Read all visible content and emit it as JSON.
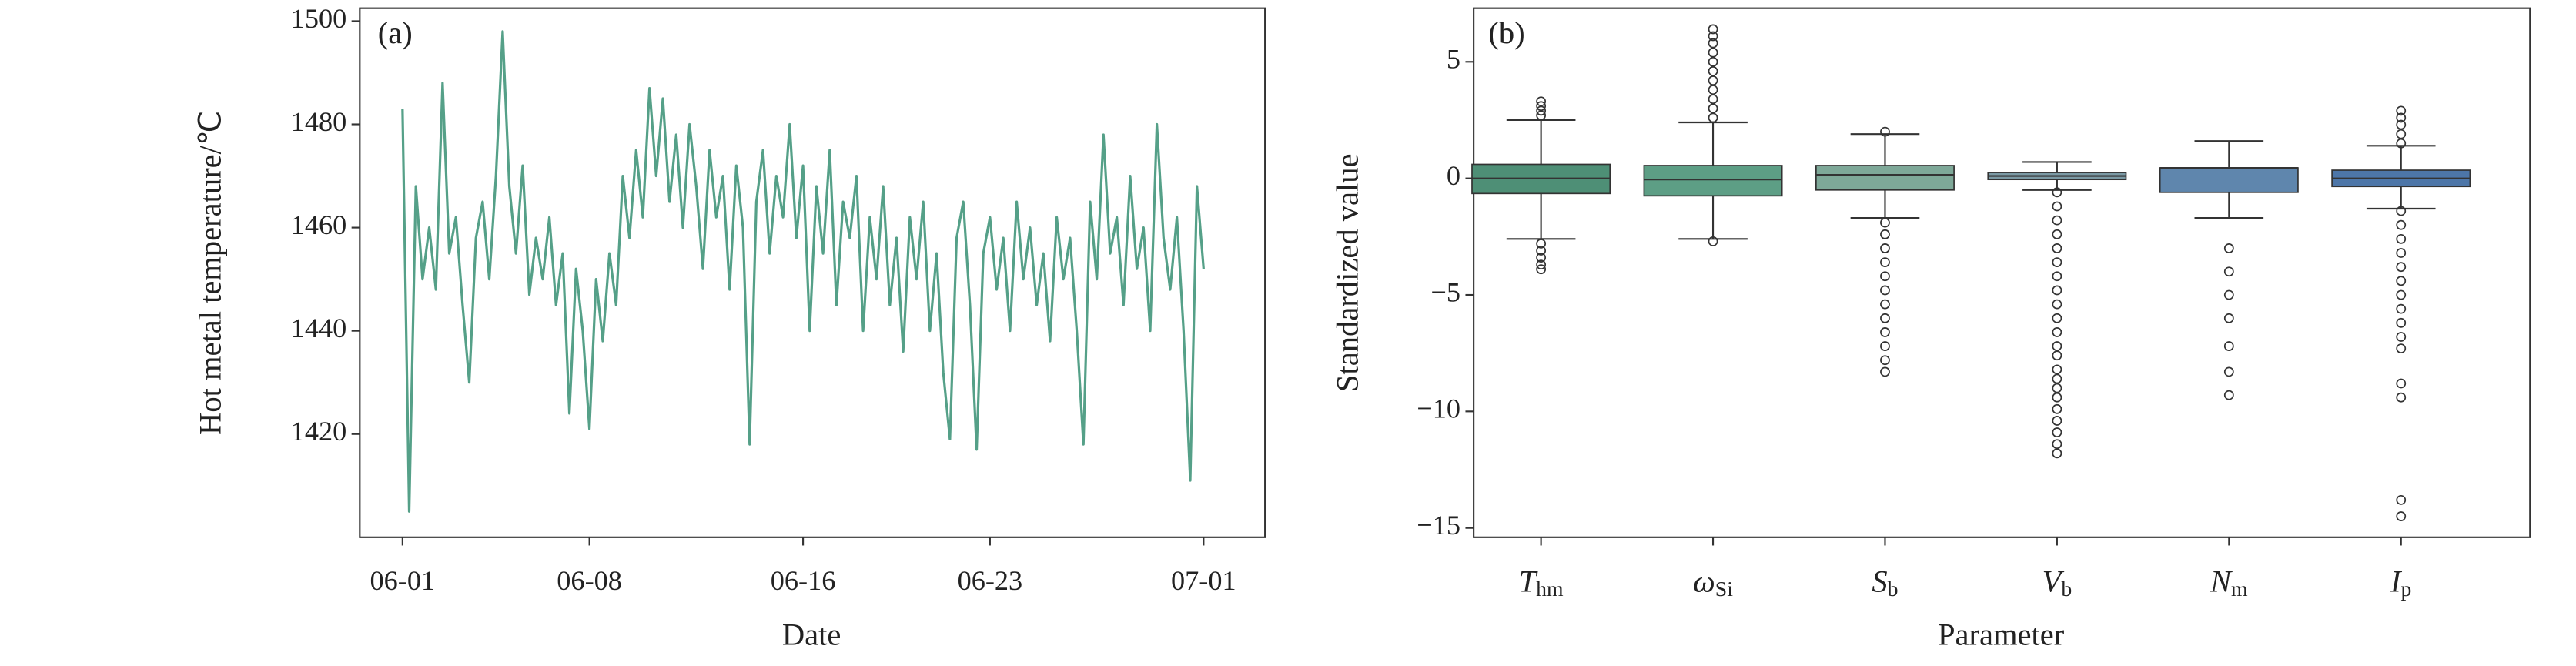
{
  "chart_data": [
    {
      "type": "line",
      "panel_label": "(a)",
      "ylabel": "Hot metal temperature/℃",
      "xlabel": "Date",
      "x": [
        0,
        0.25,
        0.5,
        0.75,
        1,
        1.25,
        1.5,
        1.75,
        2,
        2.25,
        2.5,
        2.75,
        3,
        3.25,
        3.5,
        3.75,
        4,
        4.25,
        4.5,
        4.75,
        5,
        5.25,
        5.5,
        5.75,
        6,
        6.25,
        6.5,
        6.75,
        7,
        7.25,
        7.5,
        7.75,
        8,
        8.25,
        8.5,
        8.75,
        9,
        9.25,
        9.5,
        9.75,
        10,
        10.25,
        10.5,
        10.75,
        11,
        11.25,
        11.5,
        11.75,
        12,
        12.25,
        12.5,
        12.75,
        13,
        13.25,
        13.5,
        13.75,
        14,
        14.25,
        14.5,
        14.75,
        15,
        15.25,
        15.5,
        15.75,
        16,
        16.25,
        16.5,
        16.75,
        17,
        17.25,
        17.5,
        17.75,
        18,
        18.25,
        18.5,
        18.75,
        19,
        19.25,
        19.5,
        19.75,
        20,
        20.25,
        20.5,
        20.75,
        21,
        21.25,
        21.5,
        21.75,
        22,
        22.25,
        22.5,
        22.75,
        23,
        23.25,
        23.5,
        23.75,
        24,
        24.25,
        24.5,
        24.75,
        25,
        25.25,
        25.5,
        25.75,
        26,
        26.25,
        26.5,
        26.75,
        27,
        27.25,
        27.5,
        27.75,
        28,
        28.25,
        28.5,
        28.75,
        29,
        29.25,
        29.5,
        29.75,
        30
      ],
      "values": [
        1483,
        1405,
        1468,
        1450,
        1460,
        1448,
        1488,
        1455,
        1462,
        1445,
        1430,
        1458,
        1465,
        1450,
        1470,
        1498,
        1468,
        1455,
        1472,
        1447,
        1458,
        1450,
        1462,
        1445,
        1455,
        1424,
        1452,
        1440,
        1421,
        1450,
        1438,
        1455,
        1445,
        1470,
        1458,
        1475,
        1462,
        1487,
        1470,
        1485,
        1465,
        1478,
        1460,
        1480,
        1468,
        1452,
        1475,
        1462,
        1470,
        1448,
        1472,
        1460,
        1418,
        1465,
        1475,
        1455,
        1470,
        1462,
        1480,
        1458,
        1472,
        1440,
        1468,
        1455,
        1475,
        1445,
        1465,
        1458,
        1470,
        1440,
        1462,
        1450,
        1468,
        1445,
        1458,
        1436,
        1462,
        1450,
        1465,
        1440,
        1455,
        1432,
        1419,
        1458,
        1465,
        1445,
        1417,
        1455,
        1462,
        1448,
        1458,
        1440,
        1465,
        1450,
        1460,
        1445,
        1455,
        1438,
        1462,
        1450,
        1458,
        1440,
        1418,
        1465,
        1450,
        1478,
        1455,
        1462,
        1445,
        1470,
        1452,
        1460,
        1440,
        1480,
        1458,
        1448,
        1462,
        1440,
        1411,
        1468,
        1452
      ],
      "color": "#55a088",
      "xlim": [
        -1.6,
        32.3
      ],
      "xticks": [
        {
          "value": 0,
          "label": "06-01"
        },
        {
          "value": 7,
          "label": "06-08"
        },
        {
          "value": 15,
          "label": "06-16"
        },
        {
          "value": 22,
          "label": "06-23"
        },
        {
          "value": 30,
          "label": "07-01"
        }
      ],
      "ylim": [
        1400,
        1502.5
      ],
      "yticks": [
        1420,
        1440,
        1460,
        1480,
        1500
      ]
    },
    {
      "type": "box",
      "panel_label": "(b)",
      "ylabel": "Standardized value",
      "xlabel": "Parameter",
      "categories": [
        {
          "symbol": "T",
          "subscript": "hm"
        },
        {
          "symbol": "ω",
          "subscript": "Si"
        },
        {
          "symbol": "S",
          "subscript": "b"
        },
        {
          "symbol": "V",
          "subscript": "b"
        },
        {
          "symbol": "N",
          "subscript": "m"
        },
        {
          "symbol": "I",
          "subscript": "p"
        }
      ],
      "boxes": [
        {
          "whislo": -2.6,
          "q1": -0.65,
          "med": 0,
          "q3": 0.6,
          "whishi": 2.5,
          "color": "#4e8f76",
          "fliers": [
            2.7,
            2.9,
            3.1,
            3.3,
            -2.8,
            -3.1,
            -3.4,
            -3.7,
            -3.9
          ]
        },
        {
          "whislo": -2.6,
          "q1": -0.75,
          "med": -0.05,
          "q3": 0.55,
          "whishi": 2.4,
          "color": "#5d9e85",
          "fliers": [
            -2.7,
            2.6,
            3,
            3.4,
            3.8,
            4.2,
            4.6,
            5,
            5.4,
            5.8,
            6.1,
            6.4
          ]
        },
        {
          "whislo": -1.7,
          "q1": -0.5,
          "med": 0.15,
          "q3": 0.55,
          "whishi": 1.9,
          "color": "#7ea898",
          "fliers": [
            2,
            -1.9,
            -2.4,
            -3,
            -3.6,
            -4.2,
            -4.8,
            -5.4,
            -6,
            -6.6,
            -7.2,
            -7.8,
            -8.3
          ]
        },
        {
          "whislo": -0.5,
          "q1": -0.05,
          "med": 0.1,
          "q3": 0.25,
          "whishi": 0.7,
          "color": "#7a99a4",
          "fliers": [
            -0.6,
            -1.2,
            -1.8,
            -2.4,
            -3,
            -3.6,
            -4.2,
            -4.8,
            -5.4,
            -6,
            -6.6,
            -7.2,
            -7.6,
            -8.2,
            -8.6,
            -9,
            -9.4,
            -9.9,
            -10.4,
            -10.9,
            -11.4,
            -11.8
          ]
        },
        {
          "whislo": -1.7,
          "q1": -0.6,
          "med": 0.45,
          "q3": 0.45,
          "whishi": 1.6,
          "color": "#5f86ad",
          "fliers": [
            -3,
            -4,
            -5,
            -6,
            -7.2,
            -8.3,
            -9.3
          ]
        },
        {
          "whislo": -1.3,
          "q1": -0.35,
          "med": 0,
          "q3": 0.35,
          "whishi": 1.4,
          "color": "#4d76a8",
          "fliers": [
            1.5,
            1.9,
            2.3,
            2.6,
            2.9,
            -1.4,
            -2,
            -2.6,
            -3.2,
            -3.8,
            -4.4,
            -5,
            -5.6,
            -6.2,
            -6.8,
            -7.3,
            -8.8,
            -9.4,
            -13.8,
            -14.5
          ]
        }
      ],
      "ylim": [
        -15.4,
        7.3
      ],
      "yticks": [
        {
          "value": -15,
          "label": "−15"
        },
        {
          "value": -10,
          "label": "−10"
        },
        {
          "value": -5,
          "label": "−5"
        },
        0,
        5
      ]
    }
  ]
}
